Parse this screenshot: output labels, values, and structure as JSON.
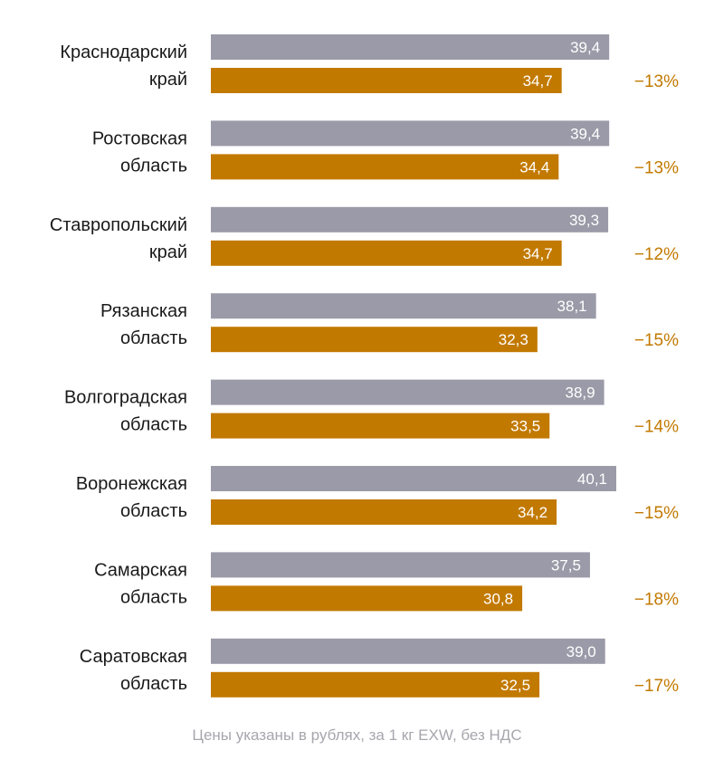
{
  "chart_data": {
    "type": "bar",
    "orientation": "horizontal",
    "categories": [
      [
        "Краснодарский",
        "край"
      ],
      [
        "Ростовская",
        "область"
      ],
      [
        "Ставропольский",
        "край"
      ],
      [
        "Рязанская",
        "область"
      ],
      [
        "Волгоградская",
        "область"
      ],
      [
        "Воронежская",
        "область"
      ],
      [
        "Самарская",
        "область"
      ],
      [
        "Саратовская",
        "область"
      ]
    ],
    "series": [
      {
        "name": "previous",
        "color": "#9a9aa8",
        "values": [
          39.4,
          39.4,
          39.3,
          38.1,
          38.9,
          40.1,
          37.5,
          39.0
        ],
        "labels": [
          "39,4",
          "39,4",
          "39,3",
          "38,1",
          "38,9",
          "40,1",
          "37,5",
          "39,0"
        ]
      },
      {
        "name": "current",
        "color": "#c27900",
        "values": [
          34.7,
          34.4,
          34.7,
          32.3,
          33.5,
          34.2,
          30.8,
          32.5
        ],
        "labels": [
          "34,7",
          "34,4",
          "34,7",
          "32,3",
          "33,5",
          "34,2",
          "30,8",
          "32,5"
        ]
      }
    ],
    "changes": [
      "−13%",
      "−13%",
      "−12%",
      "−15%",
      "−14%",
      "−15%",
      "−18%",
      "−17%"
    ],
    "change_color": "#c27900",
    "xlim": [
      0,
      40.1
    ],
    "note": "Цены указаны в рублях, за 1 кг EXW, без НДС"
  }
}
